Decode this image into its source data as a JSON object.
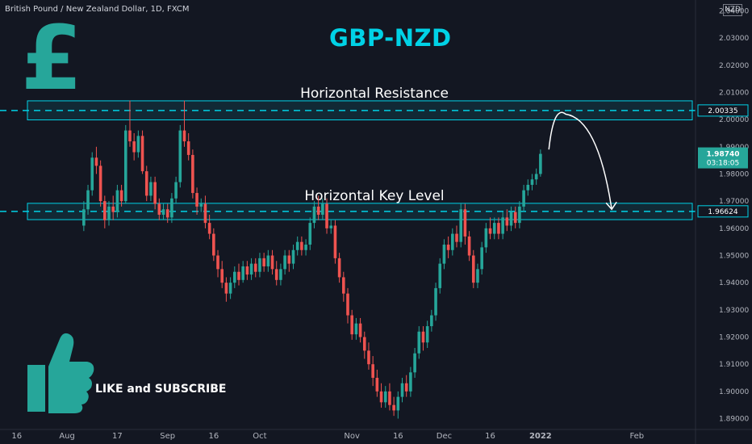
{
  "header": {
    "symbol_line": "British Pound / New Zealand Dollar, 1D, FXCM",
    "currency": "NZD"
  },
  "title": "GBP-NZD",
  "cta": "LIKE and SUBSCRIBE",
  "icons": {
    "top_left": "pound-sign-icon",
    "bottom_left": "thumbs-up-icon"
  },
  "colors": {
    "up": "#26a69a",
    "down": "#ef5350",
    "accent": "#00d2e6",
    "background": "#131722"
  },
  "chart_data": {
    "type": "candlestick",
    "ylim": [
      1.886,
      2.044
    ],
    "y_ticks": [
      2.04,
      2.03,
      2.02,
      2.01,
      2.0,
      1.99,
      1.98,
      1.97,
      1.96,
      1.95,
      1.94,
      1.93,
      1.92,
      1.91,
      1.9,
      1.89
    ],
    "y_tick_labels": [
      "2.04000",
      "2.03000",
      "2.02000",
      "2.01000",
      "2.00000",
      "1.99000",
      "1.98000",
      "1.97000",
      "1.96000",
      "1.95000",
      "1.94000",
      "1.93000",
      "1.92000",
      "1.91000",
      "1.90000",
      "1.89000"
    ],
    "x_ticks": [
      {
        "label": "16",
        "day": 0
      },
      {
        "label": "Aug",
        "day": 12
      },
      {
        "label": "17",
        "day": 24
      },
      {
        "label": "Sep",
        "day": 36
      },
      {
        "label": "16",
        "day": 47
      },
      {
        "label": "Oct",
        "day": 58
      },
      {
        "label": "Nov",
        "day": 80
      },
      {
        "label": "16",
        "day": 91
      },
      {
        "label": "Dec",
        "day": 102
      },
      {
        "label": "16",
        "day": 113
      },
      {
        "label": "2022",
        "day": 125
      },
      {
        "label": "Feb",
        "day": 148
      }
    ],
    "x_day_range": [
      -4,
      162
    ],
    "zones": [
      {
        "label": "Horizontal Resistance",
        "low": 1.9999,
        "high": 2.0069,
        "level": 2.00335,
        "level_label": "2.00335"
      },
      {
        "label": "Horizontal Key Level",
        "low": 1.9632,
        "high": 1.9692,
        "level": 1.96624,
        "level_label": "1.96624"
      }
    ],
    "last_price": {
      "label": "1.98740",
      "countdown": "03:18:05",
      "value": 1.9874
    },
    "projection": {
      "from_day": 127,
      "from_price": 1.989,
      "peak_day": 131,
      "peak_price": 2.002,
      "to_day": 142,
      "to_price": 1.967
    },
    "candles": [
      [
        1.961,
        1.967,
        1.97,
        1.959
      ],
      [
        1.967,
        1.974,
        1.976,
        1.965
      ],
      [
        1.974,
        1.986,
        1.988,
        1.972
      ],
      [
        1.986,
        1.983,
        1.99,
        1.98
      ],
      [
        1.983,
        1.97,
        1.985,
        1.968
      ],
      [
        1.97,
        1.963,
        1.972,
        1.96
      ],
      [
        1.963,
        1.968,
        1.97,
        1.961
      ],
      [
        1.968,
        1.966,
        1.972,
        1.963
      ],
      [
        1.966,
        1.974,
        1.976,
        1.964
      ],
      [
        1.974,
        1.97,
        1.976,
        1.968
      ],
      [
        1.97,
        1.996,
        1.998,
        1.969
      ],
      [
        1.996,
        1.992,
        2.007,
        1.99
      ],
      [
        1.992,
        1.988,
        1.995,
        1.985
      ],
      [
        1.988,
        1.994,
        1.996,
        1.986
      ],
      [
        1.994,
        1.981,
        1.996,
        1.98
      ],
      [
        1.981,
        1.972,
        1.983,
        1.97
      ],
      [
        1.972,
        1.977,
        1.979,
        1.97
      ],
      [
        1.977,
        1.969,
        1.979,
        1.967
      ],
      [
        1.969,
        1.965,
        1.971,
        1.963
      ],
      [
        1.965,
        1.967,
        1.969,
        1.963
      ],
      [
        1.967,
        1.964,
        1.969,
        1.962
      ],
      [
        1.964,
        1.971,
        1.973,
        1.962
      ],
      [
        1.971,
        1.977,
        1.979,
        1.969
      ],
      [
        1.977,
        1.996,
        1.998,
        1.975
      ],
      [
        1.996,
        1.992,
        2.007,
        1.99
      ],
      [
        1.992,
        1.987,
        1.995,
        1.985
      ],
      [
        1.987,
        1.973,
        1.989,
        1.971
      ],
      [
        1.973,
        1.968,
        1.975,
        1.965
      ],
      [
        1.968,
        1.969,
        1.971,
        1.966
      ],
      [
        1.969,
        1.962,
        1.972,
        1.96
      ],
      [
        1.962,
        1.958,
        1.965,
        1.956
      ],
      [
        1.958,
        1.95,
        1.96,
        1.948
      ],
      [
        1.95,
        1.945,
        1.952,
        1.942
      ],
      [
        1.945,
        1.94,
        1.948,
        1.938
      ],
      [
        1.94,
        1.936,
        1.942,
        1.933
      ],
      [
        1.936,
        1.94,
        1.942,
        1.934
      ],
      [
        1.94,
        1.944,
        1.946,
        1.938
      ],
      [
        1.944,
        1.941,
        1.947,
        1.939
      ],
      [
        1.941,
        1.946,
        1.948,
        1.94
      ],
      [
        1.946,
        1.943,
        1.948,
        1.941
      ],
      [
        1.943,
        1.947,
        1.949,
        1.941
      ],
      [
        1.947,
        1.944,
        1.949,
        1.942
      ],
      [
        1.944,
        1.949,
        1.951,
        1.942
      ],
      [
        1.949,
        1.946,
        1.951,
        1.944
      ],
      [
        1.946,
        1.95,
        1.952,
        1.944
      ],
      [
        1.95,
        1.945,
        1.952,
        1.943
      ],
      [
        1.945,
        1.941,
        1.948,
        1.939
      ],
      [
        1.941,
        1.945,
        1.947,
        1.939
      ],
      [
        1.945,
        1.95,
        1.952,
        1.943
      ],
      [
        1.95,
        1.947,
        1.952,
        1.944
      ],
      [
        1.947,
        1.952,
        1.954,
        1.945
      ],
      [
        1.952,
        1.955,
        1.957,
        1.95
      ],
      [
        1.955,
        1.952,
        1.957,
        1.95
      ],
      [
        1.952,
        1.954,
        1.956,
        1.95
      ],
      [
        1.954,
        1.962,
        1.964,
        1.952
      ],
      [
        1.962,
        1.968,
        1.97,
        1.96
      ],
      [
        1.968,
        1.965,
        1.972,
        1.963
      ],
      [
        1.965,
        1.969,
        1.971,
        1.963
      ],
      [
        1.969,
        1.96,
        1.971,
        1.958
      ],
      [
        1.96,
        1.961,
        1.963,
        1.958
      ],
      [
        1.961,
        1.949,
        1.963,
        1.947
      ],
      [
        1.949,
        1.942,
        1.951,
        1.94
      ],
      [
        1.942,
        1.936,
        1.944,
        1.933
      ],
      [
        1.936,
        1.928,
        1.938,
        1.925
      ],
      [
        1.928,
        1.921,
        1.93,
        1.919
      ],
      [
        1.921,
        1.925,
        1.927,
        1.919
      ],
      [
        1.925,
        1.92,
        1.927,
        1.918
      ],
      [
        1.92,
        1.915,
        1.922,
        1.912
      ],
      [
        1.915,
        1.91,
        1.918,
        1.908
      ],
      [
        1.91,
        1.905,
        1.913,
        1.902
      ],
      [
        1.905,
        1.9,
        1.908,
        1.898
      ],
      [
        1.9,
        1.896,
        1.903,
        1.894
      ],
      [
        1.896,
        1.9,
        1.902,
        1.894
      ],
      [
        1.9,
        1.895,
        1.903,
        1.893
      ],
      [
        1.895,
        1.893,
        1.898,
        1.891
      ],
      [
        1.893,
        1.898,
        1.9,
        1.89
      ],
      [
        1.898,
        1.903,
        1.905,
        1.896
      ],
      [
        1.903,
        1.9,
        1.906,
        1.898
      ],
      [
        1.9,
        1.907,
        1.909,
        1.898
      ],
      [
        1.907,
        1.914,
        1.916,
        1.905
      ],
      [
        1.914,
        1.922,
        1.924,
        1.912
      ],
      [
        1.922,
        1.918,
        1.924,
        1.915
      ],
      [
        1.918,
        1.924,
        1.926,
        1.916
      ],
      [
        1.924,
        1.928,
        1.93,
        1.922
      ],
      [
        1.928,
        1.938,
        1.94,
        1.926
      ],
      [
        1.938,
        1.947,
        1.949,
        1.936
      ],
      [
        1.947,
        1.954,
        1.956,
        1.945
      ],
      [
        1.954,
        1.952,
        1.957,
        1.949
      ],
      [
        1.952,
        1.958,
        1.96,
        1.95
      ],
      [
        1.958,
        1.955,
        1.961,
        1.953
      ],
      [
        1.955,
        1.967,
        1.969,
        1.953
      ],
      [
        1.967,
        1.957,
        1.969,
        1.954
      ],
      [
        1.957,
        1.95,
        1.959,
        1.948
      ],
      [
        1.95,
        1.94,
        1.952,
        1.938
      ],
      [
        1.94,
        1.945,
        1.947,
        1.938
      ],
      [
        1.945,
        1.953,
        1.955,
        1.943
      ],
      [
        1.953,
        1.96,
        1.962,
        1.951
      ],
      [
        1.96,
        1.958,
        1.964,
        1.956
      ],
      [
        1.958,
        1.962,
        1.964,
        1.956
      ],
      [
        1.962,
        1.958,
        1.964,
        1.956
      ],
      [
        1.958,
        1.964,
        1.966,
        1.956
      ],
      [
        1.964,
        1.961,
        1.967,
        1.959
      ],
      [
        1.961,
        1.966,
        1.968,
        1.959
      ],
      [
        1.966,
        1.962,
        1.968,
        1.96
      ],
      [
        1.962,
        1.968,
        1.97,
        1.96
      ],
      [
        1.968,
        1.974,
        1.976,
        1.966
      ],
      [
        1.974,
        1.976,
        1.978,
        1.972
      ],
      [
        1.976,
        1.978,
        1.98,
        1.974
      ],
      [
        1.978,
        1.98,
        1.982,
        1.976
      ],
      [
        1.98,
        1.9874,
        1.989,
        1.979
      ]
    ]
  }
}
